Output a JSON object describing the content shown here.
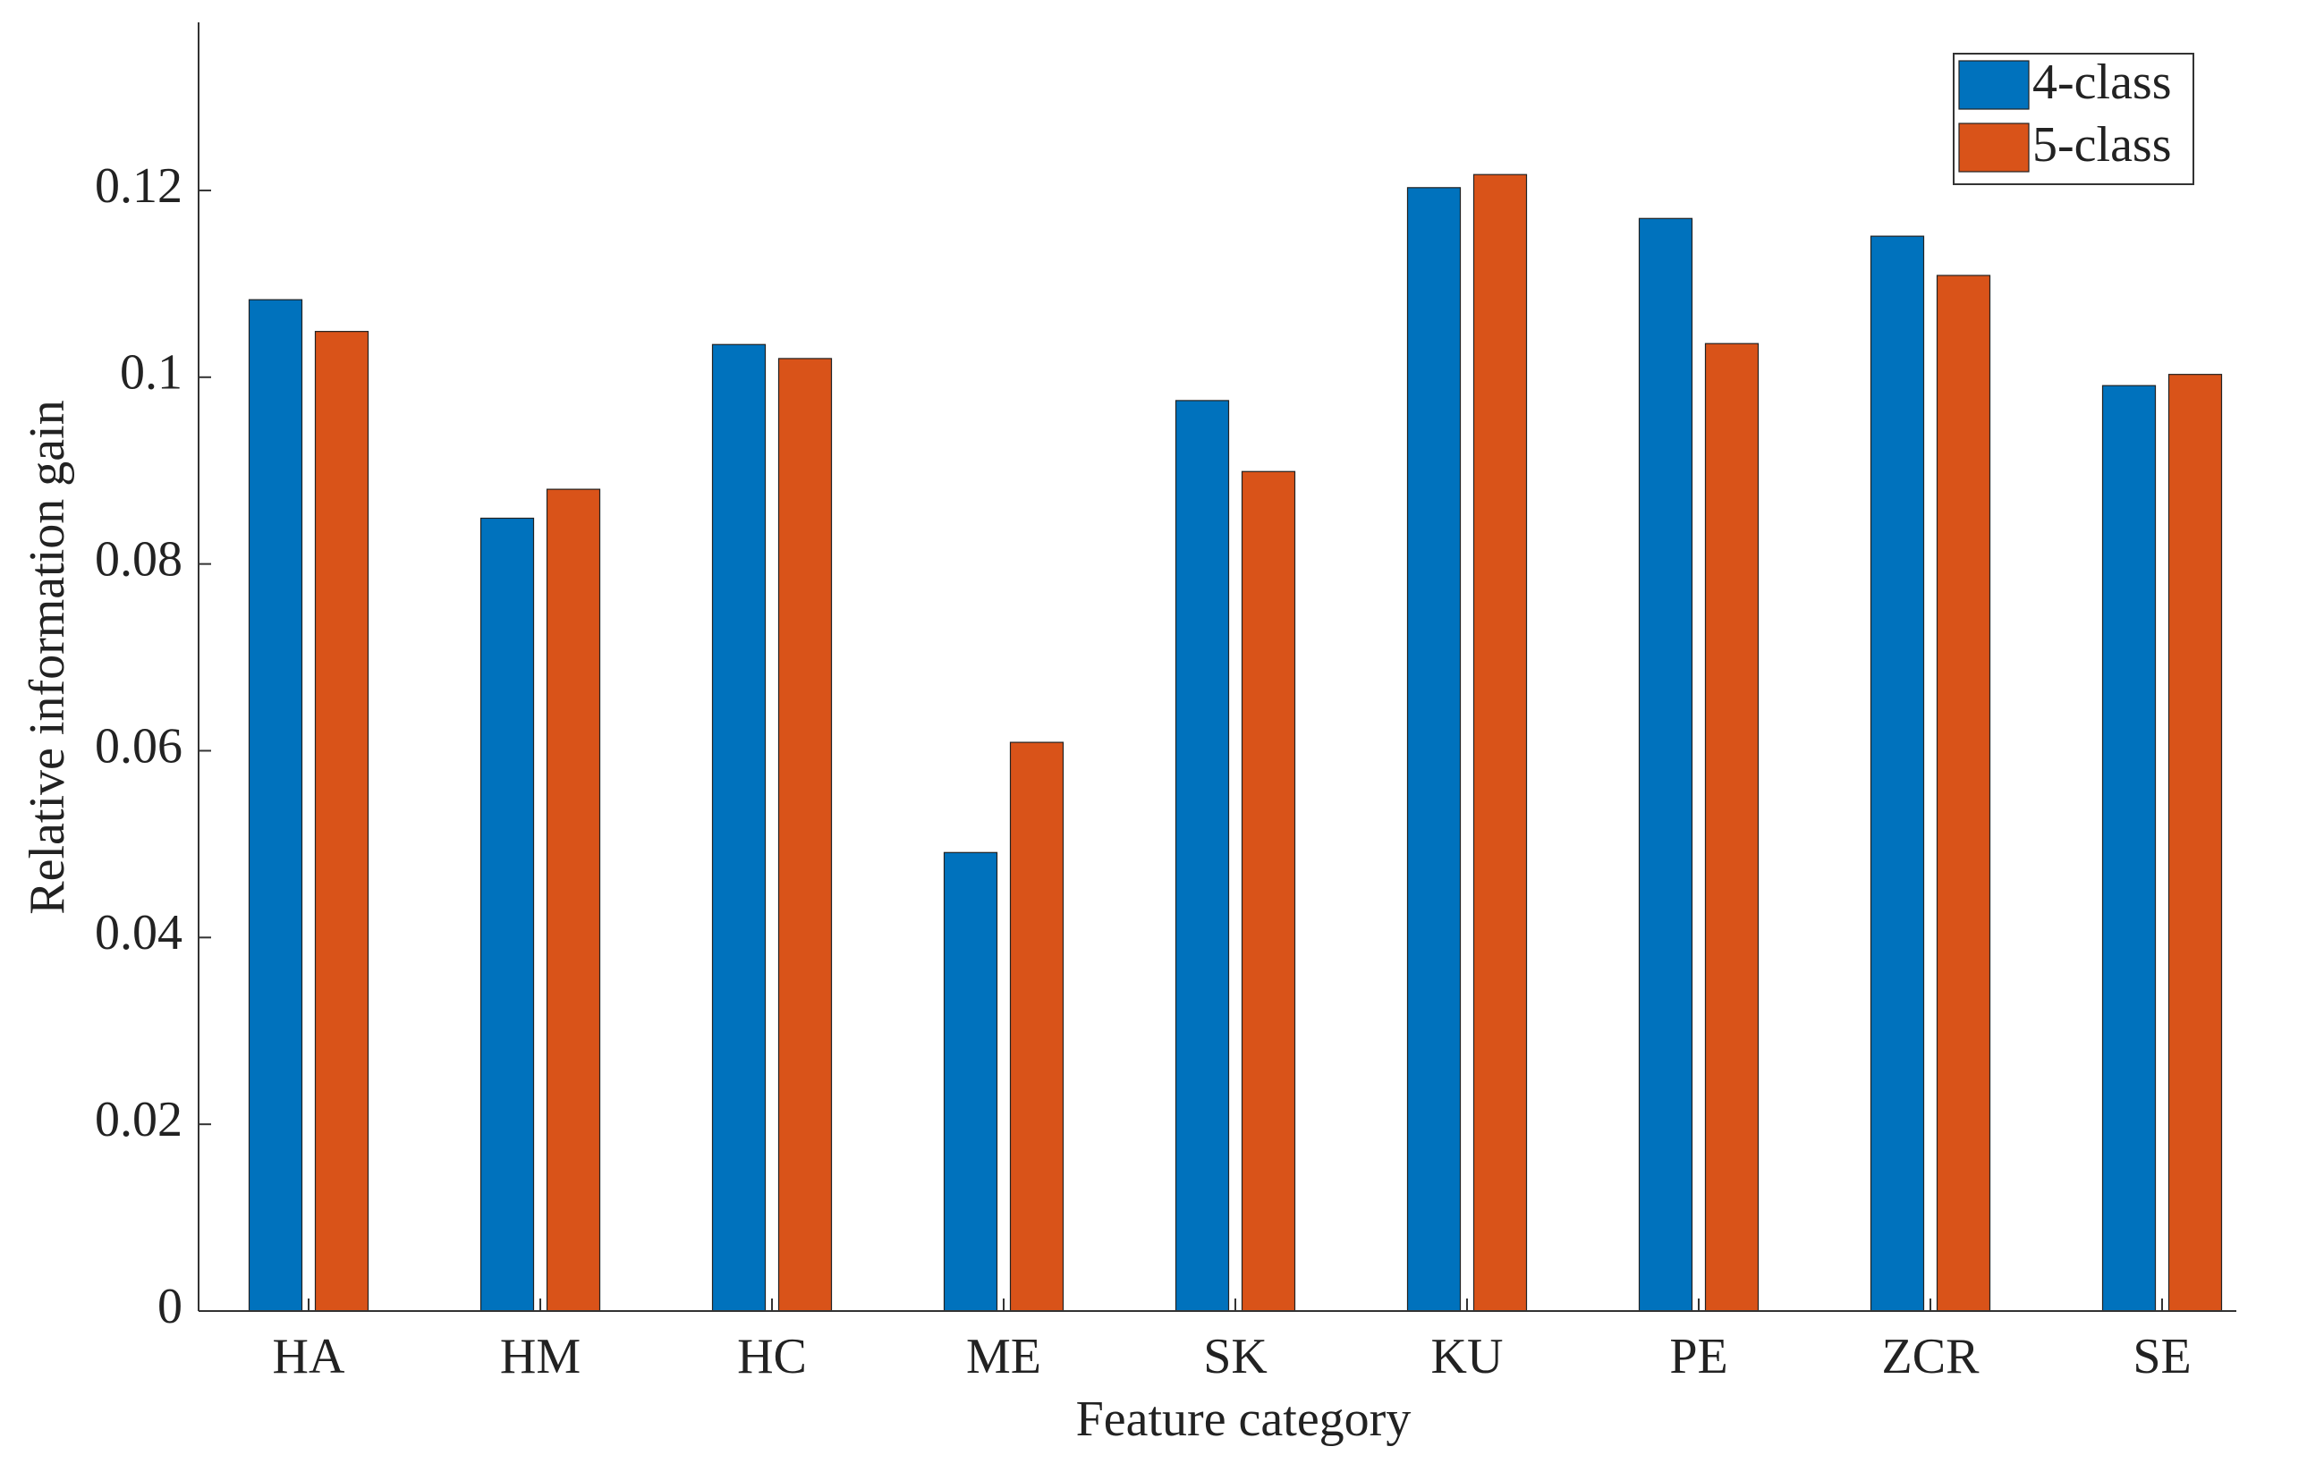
{
  "chart_data": {
    "type": "bar",
    "x_label": "Feature category",
    "y_label": "Relative information gain",
    "categories": [
      "HA",
      "HM",
      "HC",
      "ME",
      "SK",
      "KU",
      "PE",
      "ZCR",
      "SE"
    ],
    "series": [
      {
        "name": "4-class",
        "color": "#0072BD",
        "values": [
          0.1083,
          0.0849,
          0.1035,
          0.0491,
          0.0975,
          0.1203,
          0.117,
          0.1151,
          0.0991
        ]
      },
      {
        "name": "5-class",
        "color": "#D95319",
        "values": [
          0.1049,
          0.088,
          0.102,
          0.0609,
          0.0899,
          0.1217,
          0.1036,
          0.1109,
          0.1003
        ]
      }
    ],
    "ylim": [
      0,
      0.138
    ],
    "yticks": [
      0,
      0.02,
      0.04,
      0.06,
      0.08,
      0.1,
      0.12
    ],
    "grid": false,
    "legend": "upper-right"
  }
}
